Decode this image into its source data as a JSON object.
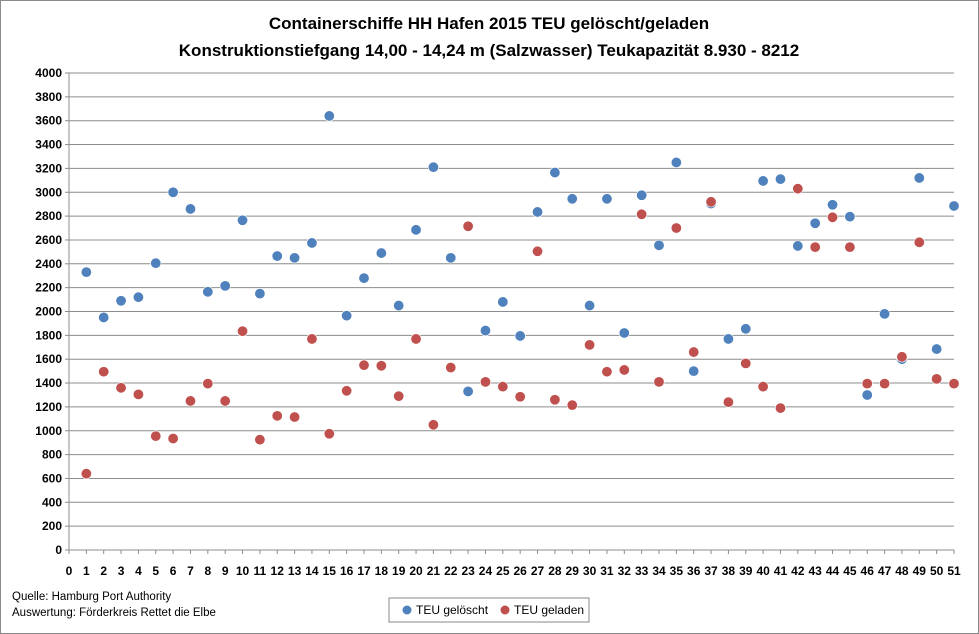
{
  "chart_data": {
    "type": "scatter",
    "title": "Containerschiffe HH Hafen 2015 TEU gelöscht/geladen",
    "subtitle": "Konstruktionstiefgang  14,00 - 14,24 m (Salzwasser)  Teukapazität   8.930 - 8212",
    "xlim": [
      0,
      51
    ],
    "ylim": [
      0,
      4000
    ],
    "x_ticks": [
      0,
      1,
      2,
      3,
      4,
      5,
      6,
      7,
      8,
      9,
      10,
      11,
      12,
      13,
      14,
      15,
      16,
      17,
      18,
      19,
      20,
      21,
      22,
      23,
      24,
      25,
      26,
      27,
      28,
      29,
      30,
      31,
      32,
      33,
      34,
      35,
      36,
      37,
      38,
      39,
      40,
      41,
      42,
      43,
      44,
      45,
      46,
      47,
      48,
      49,
      50,
      51
    ],
    "y_ticks": [
      0,
      200,
      400,
      600,
      800,
      1000,
      1200,
      1400,
      1600,
      1800,
      2000,
      2200,
      2400,
      2600,
      2800,
      3000,
      3200,
      3400,
      3600,
      3800,
      4000
    ],
    "grid": "horizontal",
    "legend_position": "bottom",
    "series": [
      {
        "name": "TEU gelöscht",
        "color": "#4f81bd",
        "x": [
          1,
          2,
          3,
          4,
          5,
          6,
          7,
          8,
          9,
          10,
          11,
          12,
          13,
          14,
          15,
          16,
          17,
          18,
          19,
          20,
          21,
          22,
          23,
          24,
          25,
          26,
          27,
          28,
          29,
          30,
          31,
          32,
          33,
          34,
          35,
          36,
          37,
          38,
          39,
          40,
          41,
          42,
          43,
          44,
          45,
          46,
          47,
          48,
          49,
          50,
          51
        ],
        "y": [
          2330,
          1950,
          2090,
          2120,
          2405,
          3000,
          2860,
          2165,
          2215,
          2765,
          2150,
          2465,
          2450,
          2575,
          3640,
          1965,
          2280,
          2490,
          2050,
          2685,
          3210,
          2450,
          1330,
          1840,
          2080,
          1795,
          2835,
          3165,
          2945,
          2050,
          2945,
          1820,
          2975,
          2555,
          3250,
          1500,
          2905,
          1770,
          1855,
          3095,
          3110,
          2550,
          2740,
          2895,
          2795,
          1300,
          1980,
          1600,
          3120,
          1685,
          2885
        ]
      },
      {
        "name": "TEU geladen",
        "color": "#c0504d",
        "x": [
          1,
          2,
          3,
          4,
          5,
          6,
          7,
          8,
          9,
          10,
          11,
          12,
          13,
          14,
          15,
          16,
          17,
          18,
          19,
          20,
          21,
          22,
          23,
          24,
          25,
          26,
          27,
          28,
          29,
          30,
          31,
          32,
          33,
          34,
          35,
          36,
          37,
          38,
          39,
          40,
          41,
          42,
          43,
          44,
          45,
          46,
          47,
          48,
          49,
          50,
          51
        ],
        "y": [
          640,
          1495,
          1360,
          1305,
          955,
          935,
          1250,
          1395,
          1250,
          1835,
          925,
          1125,
          1115,
          1770,
          975,
          1335,
          1550,
          1545,
          1290,
          1770,
          1050,
          1530,
          2715,
          1410,
          1370,
          1285,
          2505,
          1260,
          1215,
          1720,
          1495,
          1510,
          2815,
          1410,
          2700,
          1660,
          2920,
          1240,
          1565,
          1370,
          1190,
          3030,
          2540,
          2790,
          2540,
          1395,
          1395,
          1620,
          2580,
          1435,
          1395
        ]
      }
    ],
    "annotations": [
      "Quelle: Hamburg Port Authority",
      "Auswertung: Förderkreis Rettet die Elbe"
    ]
  }
}
